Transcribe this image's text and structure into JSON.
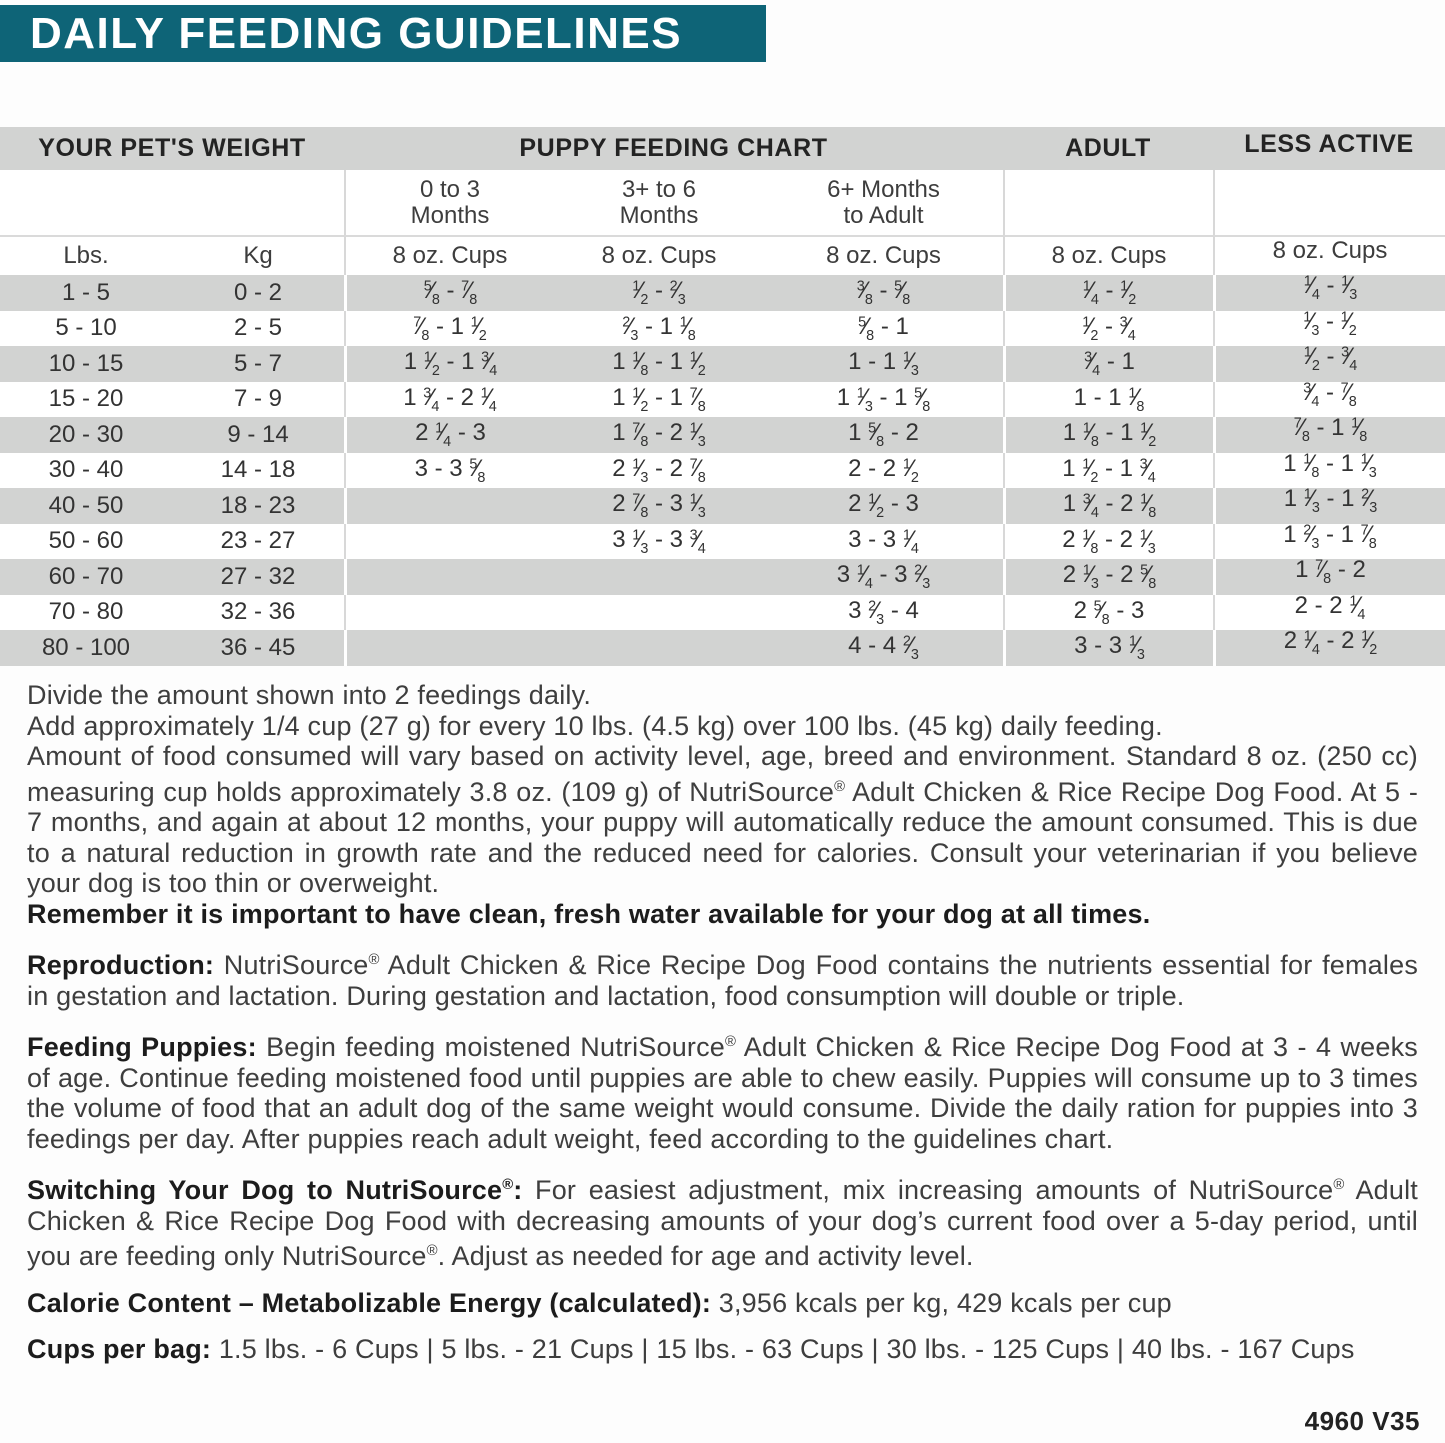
{
  "title": "DAILY FEEDING GUIDELINES",
  "colors": {
    "teal": "#0e6477",
    "band_gray": "#d2d3d2",
    "row_stripe_gray": "#d2d3d2"
  },
  "table": {
    "group_headers": [
      {
        "label": "YOUR PET'S WEIGHT",
        "span": 2
      },
      {
        "label": "PUPPY FEEDING CHART",
        "span": 3
      },
      {
        "label": "ADULT",
        "span": 1
      },
      {
        "label": "LESS ACTIVE",
        "span": 1
      }
    ],
    "age_headers": [
      "",
      "",
      "0 to 3\nMonths",
      "3+ to 6\nMonths",
      "6+ Months\nto Adult",
      "",
      ""
    ],
    "unit_row": [
      "Lbs.",
      "Kg",
      "8 oz. Cups",
      "8 oz. Cups",
      "8 oz. Cups",
      "8 oz. Cups",
      "8 oz. Cups"
    ],
    "rows": [
      [
        "1 - 5",
        "0 - 2",
        "5/8 - 7/8",
        "1/2 - 2/3",
        "3/8 - 5/8",
        "1/4 - 1/2",
        "1/4 - 1/3"
      ],
      [
        "5 - 10",
        "2 - 5",
        "7/8 - 1 1/2",
        "2/3 - 1 1/8",
        "5/8 - 1",
        "1/2 - 3/4",
        "1/3 - 1/2"
      ],
      [
        "10 - 15",
        "5 - 7",
        "1 1/2 - 1 3/4",
        "1 1/8 - 1 1/2",
        "1 - 1 1/3",
        "3/4 - 1",
        "1/2 - 3/4"
      ],
      [
        "15 - 20",
        "7 - 9",
        "1 3/4 - 2 1/4",
        "1 1/2 - 1 7/8",
        "1 1/3 - 1 5/8",
        "1 - 1 1/8",
        "3/4 - 7/8"
      ],
      [
        "20 - 30",
        "9 - 14",
        "2 1/4 - 3",
        "1 7/8 - 2 1/3",
        "1 5/8 - 2",
        "1 1/8 - 1 1/2",
        "7/8 - 1 1/8"
      ],
      [
        "30 - 40",
        "14 - 18",
        "3 - 3 5/8",
        "2 1/3 - 2 7/8",
        "2 - 2 1/2",
        "1 1/2 - 1 3/4",
        "1 1/8 - 1 1/3"
      ],
      [
        "40 - 50",
        "18 - 23",
        "",
        "2 7/8 - 3 1/3",
        "2 1/2 - 3",
        "1 3/4 - 2 1/8",
        "1 1/3 - 1 2/3"
      ],
      [
        "50 - 60",
        "23 - 27",
        "",
        "3 1/3 - 3 3/4",
        "3 - 3 1/4",
        "2 1/8 - 2 1/3",
        "1 2/3 - 1 7/8"
      ],
      [
        "60 - 70",
        "27 - 32",
        "",
        "",
        "3 1/4 - 3 2/3",
        "2 1/3 - 2 5/8",
        "1 7/8 - 2"
      ],
      [
        "70 - 80",
        "32 - 36",
        "",
        "",
        "3 2/3 - 4",
        "2 5/8 - 3",
        "2 - 2 1/4"
      ],
      [
        "80 - 100",
        "36 - 45",
        "",
        "",
        "4 - 4 2/3",
        "3 - 3 1/3",
        "2 1/4 - 2 1/2"
      ]
    ]
  },
  "paragraphs": [
    {
      "name": "feeding-notes",
      "parts": [
        {
          "t": "Divide the amount shown into 2 feedings daily.\n"
        },
        {
          "t": "Add approximately 1/4 cup (27 g) for every 10 lbs. (4.5 kg) over 100 lbs. (45 kg) daily feeding.\n"
        },
        {
          "t": "Amount of food consumed will vary based on activity level, age, breed and environment. Standard 8 oz. (250 cc) measuring cup holds approximately 3.8 oz. (109 g) of NutriSource® Adult Chicken & Rice Recipe Dog Food. At 5 - 7 months, and again at about 12 months, your puppy will automatically reduce the amount consumed. This is due to a natural reduction in growth rate and the reduced need for calories. Consult your veterinarian if you believe your dog is too thin or overweight.\n"
        },
        {
          "b": true,
          "t": "Remember it is important to have clean, fresh water available for your dog at all times."
        }
      ]
    },
    {
      "name": "reproduction-note",
      "parts": [
        {
          "b": true,
          "t": "Reproduction: "
        },
        {
          "t": "NutriSource® Adult Chicken & Rice Recipe Dog Food contains the nutrients essential for females in gestation and lactation. During gestation and lactation, food consumption will double or triple."
        }
      ]
    },
    {
      "name": "feeding-puppies-note",
      "parts": [
        {
          "b": true,
          "t": "Feeding Puppies: "
        },
        {
          "t": "Begin feeding moistened NutriSource® Adult Chicken & Rice Recipe Dog Food at 3 - 4 weeks of age. Continue feeding moistened food until puppies are able to chew easily. Puppies will consume up to 3 times the volume of food that an adult dog of the same weight would consume. Divide the daily ration for puppies into 3 feedings per day. After puppies reach adult weight, feed according to the guidelines chart."
        }
      ]
    },
    {
      "name": "switching-note",
      "parts": [
        {
          "b": true,
          "t": "Switching Your Dog to NutriSource®: "
        },
        {
          "t": "For easiest adjustment, mix increasing amounts of NutriSource® Adult Chicken & Rice Recipe Dog Food with decreasing amounts of your dog’s current food over a 5-day period, until you are feeding only NutriSource®. Adjust as needed for age and activity level."
        }
      ]
    },
    {
      "name": "calorie-content",
      "parts": [
        {
          "b": true,
          "t": "Calorie Content – Metabolizable Energy (calculated): "
        },
        {
          "t": "3,956 kcals per kg, 429 kcals per cup"
        }
      ]
    },
    {
      "name": "cups-per-bag",
      "parts": [
        {
          "b": true,
          "t": "Cups per bag: "
        },
        {
          "t": "1.5 lbs. - 6 Cups  |  5 lbs. - 21 Cups  |  15 lbs. -  63 Cups  |  30 lbs. -  125 Cups  |  40 lbs. - 167 Cups"
        }
      ]
    }
  ],
  "footer_code": "4960 V35"
}
